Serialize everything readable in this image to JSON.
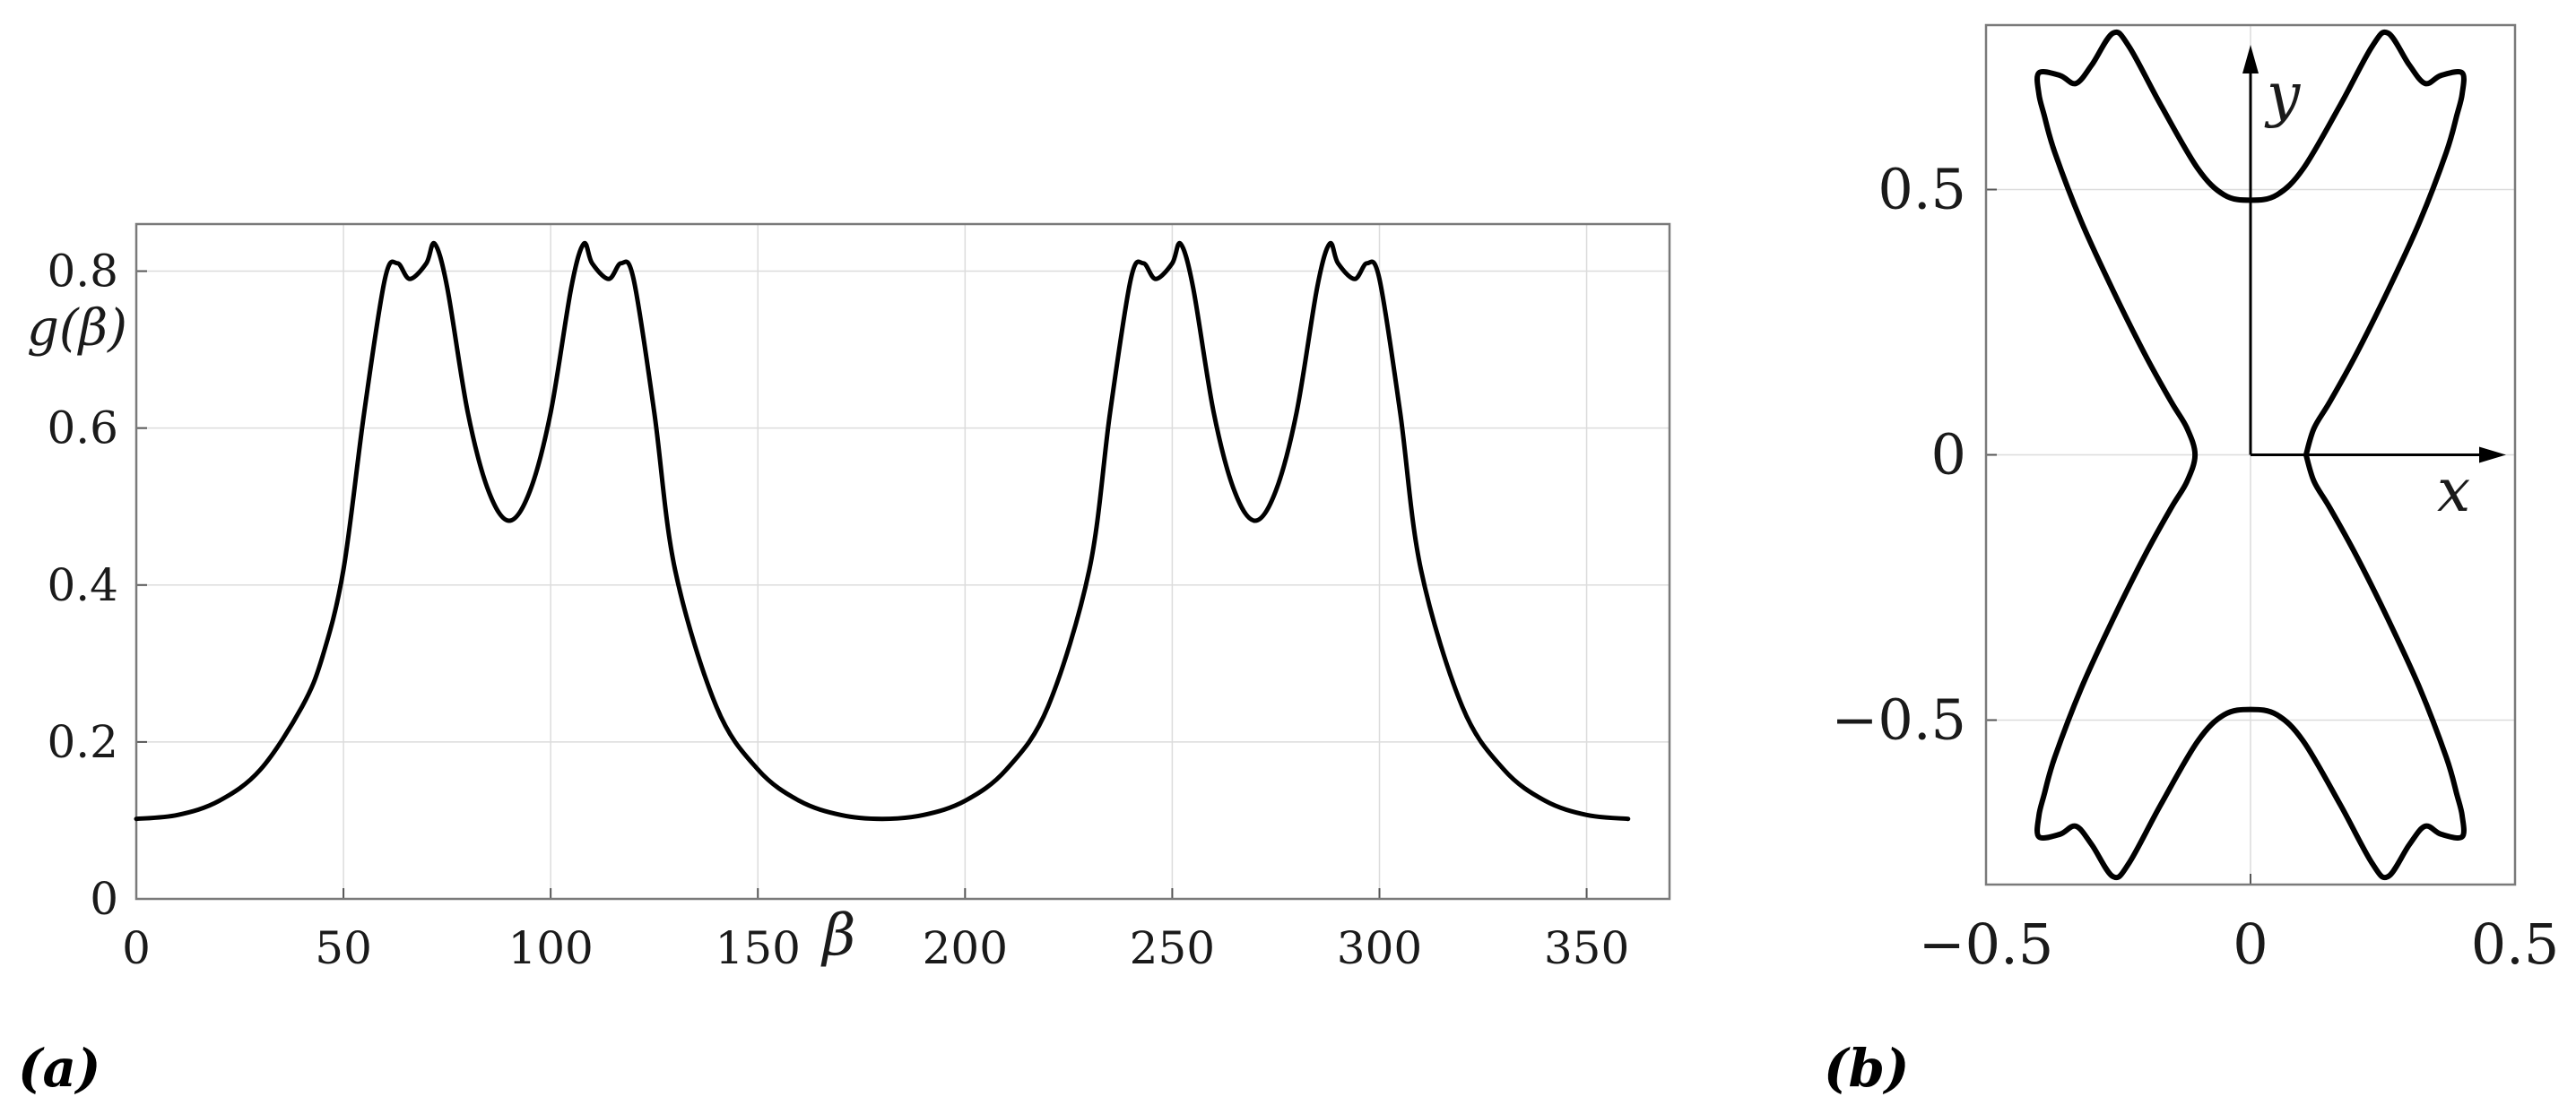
{
  "chart_data": [
    {
      "type": "line",
      "panel_label": "(a)",
      "xlabel": "β",
      "ylabel": "g(β)",
      "xlim": [
        0,
        370
      ],
      "ylim": [
        0,
        0.86
      ],
      "xticks": [
        "0",
        "50",
        "100",
        "150",
        "200",
        "250",
        "300",
        "350"
      ],
      "yticks": [
        "0",
        "0.2",
        "0.4",
        "0.6",
        "0.8"
      ],
      "grid": true,
      "series": [
        {
          "x": [
            0,
            10,
            20,
            30,
            40,
            45,
            50,
            55,
            60,
            63,
            66,
            70,
            72,
            75,
            80,
            85,
            90,
            95,
            100,
            105,
            108,
            110,
            114,
            117,
            120,
            125,
            130,
            140,
            150,
            160,
            170,
            180,
            190,
            200,
            210,
            220,
            230,
            235,
            240,
            243,
            246,
            250,
            252,
            255,
            260,
            265,
            270,
            275,
            280,
            285,
            288,
            290,
            294,
            297,
            300,
            305,
            310,
            320,
            330,
            340,
            350,
            360
          ],
          "y": [
            0.102,
            0.107,
            0.125,
            0.165,
            0.245,
            0.31,
            0.42,
            0.62,
            0.79,
            0.81,
            0.79,
            0.81,
            0.835,
            0.78,
            0.62,
            0.52,
            0.482,
            0.52,
            0.62,
            0.78,
            0.835,
            0.81,
            0.79,
            0.81,
            0.79,
            0.62,
            0.42,
            0.245,
            0.165,
            0.125,
            0.107,
            0.102,
            0.107,
            0.125,
            0.165,
            0.245,
            0.42,
            0.62,
            0.79,
            0.81,
            0.79,
            0.81,
            0.835,
            0.78,
            0.62,
            0.52,
            0.482,
            0.52,
            0.62,
            0.78,
            0.835,
            0.81,
            0.79,
            0.81,
            0.79,
            0.62,
            0.42,
            0.245,
            0.165,
            0.125,
            0.107,
            0.102
          ]
        }
      ]
    },
    {
      "type": "line",
      "panel_label": "(b)",
      "xlabel": "x",
      "ylabel": "y",
      "xlim": [
        -0.5,
        0.5
      ],
      "ylim": [
        -0.81,
        0.81
      ],
      "xticks": [
        "−0.5",
        "0",
        "0.5"
      ],
      "yticks": [
        "−0.5",
        "0",
        "0.5"
      ],
      "grid": true,
      "series": [
        {
          "x": [
            0.105,
            0.12,
            0.15,
            0.2,
            0.26,
            0.32,
            0.37,
            0.39,
            0.4,
            0.4,
            0.36,
            0.33,
            0.3,
            0.26,
            0.23,
            0.17,
            0.1,
            0.05,
            0.0,
            -0.05,
            -0.1,
            -0.17,
            -0.23,
            -0.26,
            -0.3,
            -0.33,
            -0.36,
            -0.4,
            -0.4,
            -0.39,
            -0.37,
            -0.32,
            -0.26,
            -0.2,
            -0.15,
            -0.12,
            -0.105,
            -0.12,
            -0.15,
            -0.2,
            -0.26,
            -0.32,
            -0.37,
            -0.39,
            -0.4,
            -0.4,
            -0.36,
            -0.33,
            -0.3,
            -0.26,
            -0.23,
            -0.17,
            -0.1,
            -0.05,
            0.0,
            0.05,
            0.1,
            0.17,
            0.23,
            0.26,
            0.3,
            0.33,
            0.36,
            0.4,
            0.4,
            0.39,
            0.37,
            0.32,
            0.26,
            0.2,
            0.15,
            0.12,
            0.105
          ],
          "y": [
            0.0,
            0.05,
            0.1,
            0.19,
            0.31,
            0.44,
            0.57,
            0.64,
            0.68,
            0.72,
            0.715,
            0.7,
            0.735,
            0.795,
            0.77,
            0.66,
            0.54,
            0.49,
            0.48,
            0.49,
            0.54,
            0.66,
            0.77,
            0.795,
            0.735,
            0.7,
            0.715,
            0.72,
            0.68,
            0.64,
            0.57,
            0.44,
            0.31,
            0.19,
            0.1,
            0.05,
            0.0,
            -0.05,
            -0.1,
            -0.19,
            -0.31,
            -0.44,
            -0.57,
            -0.64,
            -0.68,
            -0.72,
            -0.715,
            -0.7,
            -0.735,
            -0.795,
            -0.77,
            -0.66,
            -0.54,
            -0.49,
            -0.48,
            -0.49,
            -0.54,
            -0.66,
            -0.77,
            -0.795,
            -0.735,
            -0.7,
            -0.715,
            -0.72,
            -0.68,
            -0.64,
            -0.57,
            -0.44,
            -0.31,
            -0.19,
            -0.1,
            -0.05,
            0.0
          ]
        }
      ]
    }
  ]
}
